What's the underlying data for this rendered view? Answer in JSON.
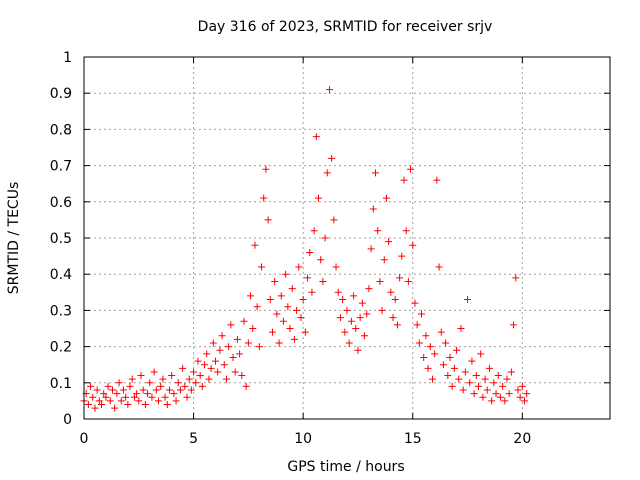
{
  "chart_data": {
    "type": "scatter",
    "title": "Day 316 of 2023, SRMTID for receiver srjv",
    "xlabel": "GPS time / hours",
    "ylabel": "SRMTID / TECUs",
    "xlim": [
      0,
      24
    ],
    "ylim": [
      0,
      1
    ],
    "xticks": [
      0,
      5,
      10,
      15,
      20
    ],
    "xtick_labels": [
      "0",
      "5",
      "10",
      "15",
      "20"
    ],
    "yticks": [
      0,
      0.1,
      0.2,
      0.3,
      0.4,
      0.5,
      0.6,
      0.7,
      0.8,
      0.9,
      1
    ],
    "ytick_labels": [
      "0",
      "0.1",
      "0.2",
      "0.3",
      "0.4",
      "0.5",
      "0.6",
      "0.7",
      "0.8",
      "0.9",
      "1"
    ],
    "grid": true,
    "marker": "plus",
    "marker_color": "#ff0000",
    "series": [
      {
        "name": "SRMTID",
        "points": [
          [
            0.0,
            0.05
          ],
          [
            0.1,
            0.07
          ],
          [
            0.2,
            0.04
          ],
          [
            0.3,
            0.09
          ],
          [
            0.4,
            0.06
          ],
          [
            0.5,
            0.03
          ],
          [
            0.6,
            0.08
          ],
          [
            0.7,
            0.05
          ],
          [
            0.8,
            0.04
          ],
          [
            0.9,
            0.07
          ],
          [
            1.0,
            0.06
          ],
          [
            1.1,
            0.09
          ],
          [
            1.2,
            0.05
          ],
          [
            1.3,
            0.08
          ],
          [
            1.4,
            0.03
          ],
          [
            1.5,
            0.07
          ],
          [
            1.6,
            0.1
          ],
          [
            1.7,
            0.05
          ],
          [
            1.8,
            0.08
          ],
          [
            1.9,
            0.06
          ],
          [
            2.0,
            0.04
          ],
          [
            2.1,
            0.09
          ],
          [
            2.2,
            0.11
          ],
          [
            2.3,
            0.06
          ],
          [
            2.4,
            0.07
          ],
          [
            2.5,
            0.05
          ],
          [
            2.6,
            0.12
          ],
          [
            2.7,
            0.08
          ],
          [
            2.8,
            0.04
          ],
          [
            2.9,
            0.07
          ],
          [
            3.0,
            0.1
          ],
          [
            3.1,
            0.06
          ],
          [
            3.2,
            0.13
          ],
          [
            3.3,
            0.08
          ],
          [
            3.4,
            0.05
          ],
          [
            3.5,
            0.09
          ],
          [
            3.6,
            0.11
          ],
          [
            3.7,
            0.06
          ],
          [
            3.8,
            0.04
          ],
          [
            3.9,
            0.08
          ],
          [
            4.0,
            0.12
          ],
          [
            4.1,
            0.07
          ],
          [
            4.2,
            0.05
          ],
          [
            4.3,
            0.1
          ],
          [
            4.4,
            0.08
          ],
          [
            4.5,
            0.14
          ],
          [
            4.6,
            0.09
          ],
          [
            4.7,
            0.06
          ],
          [
            4.8,
            0.11
          ],
          [
            4.9,
            0.08
          ],
          [
            5.0,
            0.13
          ],
          [
            5.1,
            0.1
          ],
          [
            5.2,
            0.16
          ],
          [
            5.3,
            0.12
          ],
          [
            5.4,
            0.09
          ],
          [
            5.5,
            0.15
          ],
          [
            5.6,
            0.18
          ],
          [
            5.7,
            0.11
          ],
          [
            5.8,
            0.14
          ],
          [
            5.9,
            0.21
          ],
          [
            6.0,
            0.16
          ],
          [
            6.1,
            0.13
          ],
          [
            6.2,
            0.19
          ],
          [
            6.3,
            0.23
          ],
          [
            6.4,
            0.15
          ],
          [
            6.5,
            0.11
          ],
          [
            6.6,
            0.2
          ],
          [
            6.7,
            0.26
          ],
          [
            6.8,
            0.17
          ],
          [
            6.9,
            0.13
          ],
          [
            7.0,
            0.22
          ],
          [
            7.1,
            0.18
          ],
          [
            7.2,
            0.12
          ],
          [
            7.3,
            0.27
          ],
          [
            7.4,
            0.09
          ],
          [
            7.5,
            0.21
          ],
          [
            7.6,
            0.34
          ],
          [
            7.7,
            0.25
          ],
          [
            7.8,
            0.48
          ],
          [
            7.9,
            0.31
          ],
          [
            8.0,
            0.2
          ],
          [
            8.1,
            0.42
          ],
          [
            8.2,
            0.61
          ],
          [
            8.3,
            0.69
          ],
          [
            8.4,
            0.55
          ],
          [
            8.5,
            0.33
          ],
          [
            8.6,
            0.24
          ],
          [
            8.7,
            0.38
          ],
          [
            8.8,
            0.29
          ],
          [
            8.9,
            0.21
          ],
          [
            9.0,
            0.34
          ],
          [
            9.1,
            0.27
          ],
          [
            9.2,
            0.4
          ],
          [
            9.3,
            0.31
          ],
          [
            9.4,
            0.25
          ],
          [
            9.5,
            0.36
          ],
          [
            9.6,
            0.22
          ],
          [
            9.7,
            0.3
          ],
          [
            9.8,
            0.42
          ],
          [
            9.9,
            0.28
          ],
          [
            10.0,
            0.33
          ],
          [
            10.1,
            0.24
          ],
          [
            10.2,
            0.39
          ],
          [
            10.3,
            0.46
          ],
          [
            10.4,
            0.35
          ],
          [
            10.5,
            0.52
          ],
          [
            10.6,
            0.78
          ],
          [
            10.7,
            0.61
          ],
          [
            10.8,
            0.44
          ],
          [
            10.9,
            0.38
          ],
          [
            11.0,
            0.5
          ],
          [
            11.1,
            0.68
          ],
          [
            11.2,
            0.91
          ],
          [
            11.3,
            0.72
          ],
          [
            11.4,
            0.55
          ],
          [
            11.5,
            0.42
          ],
          [
            11.6,
            0.35
          ],
          [
            11.7,
            0.28
          ],
          [
            11.8,
            0.33
          ],
          [
            11.9,
            0.24
          ],
          [
            12.0,
            0.3
          ],
          [
            12.1,
            0.21
          ],
          [
            12.2,
            0.27
          ],
          [
            12.3,
            0.34
          ],
          [
            12.4,
            0.25
          ],
          [
            12.5,
            0.19
          ],
          [
            12.6,
            0.28
          ],
          [
            12.7,
            0.32
          ],
          [
            12.8,
            0.23
          ],
          [
            12.9,
            0.29
          ],
          [
            13.0,
            0.36
          ],
          [
            13.1,
            0.47
          ],
          [
            13.2,
            0.58
          ],
          [
            13.3,
            0.68
          ],
          [
            13.4,
            0.52
          ],
          [
            13.5,
            0.38
          ],
          [
            13.6,
            0.3
          ],
          [
            13.7,
            0.44
          ],
          [
            13.8,
            0.61
          ],
          [
            13.9,
            0.49
          ],
          [
            14.0,
            0.35
          ],
          [
            14.1,
            0.28
          ],
          [
            14.2,
            0.33
          ],
          [
            14.3,
            0.26
          ],
          [
            14.4,
            0.39
          ],
          [
            14.5,
            0.45
          ],
          [
            14.6,
            0.66
          ],
          [
            14.7,
            0.52
          ],
          [
            14.8,
            0.38
          ],
          [
            14.9,
            0.69
          ],
          [
            15.0,
            0.48
          ],
          [
            15.1,
            0.32
          ],
          [
            15.2,
            0.26
          ],
          [
            15.3,
            0.21
          ],
          [
            15.4,
            0.29
          ],
          [
            15.5,
            0.17
          ],
          [
            15.6,
            0.23
          ],
          [
            15.7,
            0.14
          ],
          [
            15.8,
            0.2
          ],
          [
            15.9,
            0.11
          ],
          [
            16.0,
            0.18
          ],
          [
            16.1,
            0.66
          ],
          [
            16.2,
            0.42
          ],
          [
            16.3,
            0.24
          ],
          [
            16.4,
            0.15
          ],
          [
            16.5,
            0.21
          ],
          [
            16.6,
            0.12
          ],
          [
            16.7,
            0.17
          ],
          [
            16.8,
            0.09
          ],
          [
            16.9,
            0.14
          ],
          [
            17.0,
            0.19
          ],
          [
            17.1,
            0.11
          ],
          [
            17.2,
            0.25
          ],
          [
            17.3,
            0.08
          ],
          [
            17.4,
            0.13
          ],
          [
            17.5,
            0.33
          ],
          [
            17.6,
            0.1
          ],
          [
            17.7,
            0.16
          ],
          [
            17.8,
            0.07
          ],
          [
            17.9,
            0.12
          ],
          [
            18.0,
            0.09
          ],
          [
            18.1,
            0.18
          ],
          [
            18.2,
            0.06
          ],
          [
            18.3,
            0.11
          ],
          [
            18.4,
            0.08
          ],
          [
            18.5,
            0.14
          ],
          [
            18.6,
            0.05
          ],
          [
            18.7,
            0.1
          ],
          [
            18.8,
            0.07
          ],
          [
            18.9,
            0.12
          ],
          [
            19.0,
            0.06
          ],
          [
            19.1,
            0.09
          ],
          [
            19.2,
            0.05
          ],
          [
            19.3,
            0.11
          ],
          [
            19.4,
            0.07
          ],
          [
            19.5,
            0.13
          ],
          [
            19.6,
            0.26
          ],
          [
            19.7,
            0.39
          ],
          [
            19.8,
            0.08
          ],
          [
            19.9,
            0.06
          ],
          [
            20.0,
            0.09
          ],
          [
            20.1,
            0.05
          ],
          [
            20.2,
            0.07
          ]
        ]
      }
    ]
  }
}
